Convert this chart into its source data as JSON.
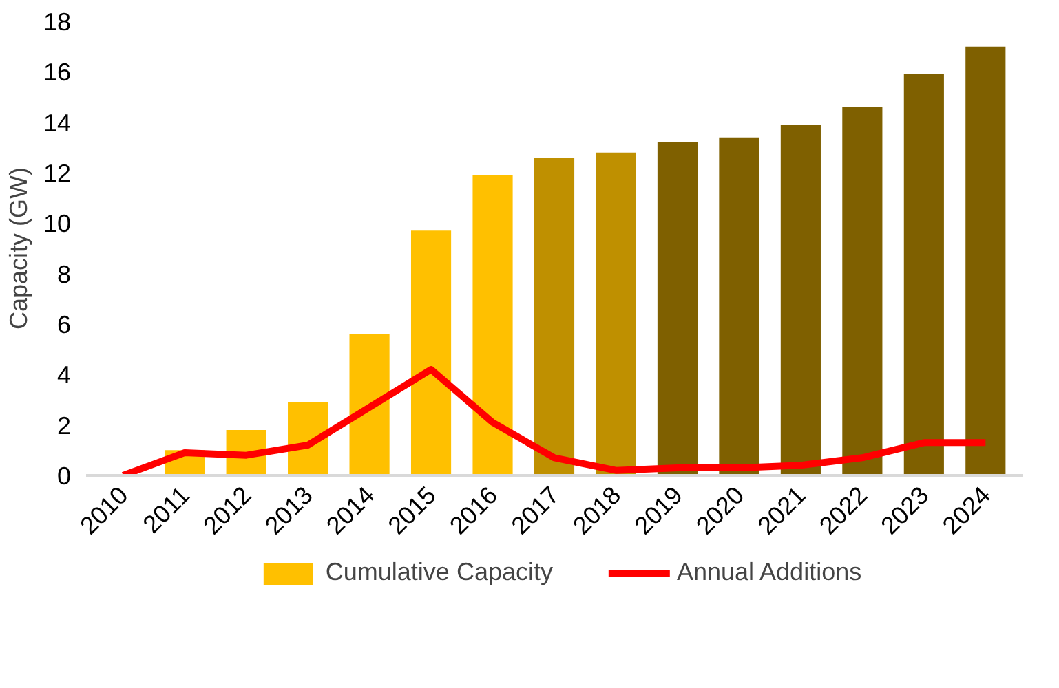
{
  "chart_data": {
    "type": "bar",
    "ylabel": "Capacity (GW)",
    "categories": [
      "2010",
      "2011",
      "2012",
      "2013",
      "2014",
      "2015",
      "2016",
      "2017",
      "2018",
      "2019",
      "2020",
      "2021",
      "2022",
      "2023",
      "2024"
    ],
    "series": [
      {
        "name": "Cumulative Capacity",
        "color": "#ffc000",
        "colors": [
          "#ffc000",
          "#ffc000",
          "#ffc000",
          "#ffc000",
          "#ffc000",
          "#ffc000",
          "#ffc000",
          "#bf9000",
          "#bf9000",
          "#7f6000",
          "#7f6000",
          "#7f6000",
          "#7f6000",
          "#7f6000",
          "#7f6000"
        ],
        "values": [
          0,
          1.0,
          1.8,
          2.9,
          5.6,
          9.7,
          11.9,
          12.6,
          12.8,
          13.2,
          13.4,
          13.9,
          14.6,
          15.9,
          17.0
        ]
      },
      {
        "name": "Annual Additions",
        "type": "line",
        "color": "#ff0000",
        "values": [
          0,
          0.9,
          0.8,
          1.2,
          2.7,
          4.2,
          2.1,
          0.7,
          0.2,
          0.3,
          0.3,
          0.4,
          0.7,
          1.3,
          1.3
        ]
      }
    ],
    "ylim": [
      0,
      18
    ],
    "yticks": [
      0,
      2,
      4,
      6,
      8,
      10,
      12,
      14,
      16,
      18
    ],
    "grid": false,
    "legend": "bottom"
  }
}
